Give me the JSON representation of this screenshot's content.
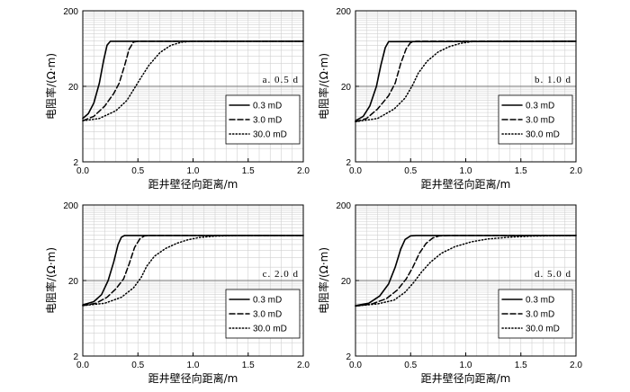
{
  "figure": {
    "xlabel": "距井壁径向距离/m",
    "ylabel": "电阻率/(Ω·m)",
    "xticks": [
      "0.0",
      "0.5",
      "1.0",
      "1.5",
      "2.0"
    ],
    "yticks": [
      "2",
      "20",
      "200"
    ]
  },
  "chart_data": [
    {
      "type": "line",
      "annotation": "a.  0.5 d",
      "xlim": [
        0,
        2
      ],
      "ylim": [
        2,
        200
      ],
      "yscale": "log",
      "grid": true,
      "legend_position": "bottom-right",
      "series": [
        {
          "name": "0.3 mD",
          "style": "solid",
          "points": [
            [
              0,
              7.5
            ],
            [
              0.05,
              8.7
            ],
            [
              0.1,
              12
            ],
            [
              0.15,
              22
            ],
            [
              0.19,
              45
            ],
            [
              0.22,
              70
            ],
            [
              0.25,
              79
            ],
            [
              2.0,
              79
            ]
          ]
        },
        {
          "name": "3.0 mD",
          "style": "dashed",
          "points": [
            [
              0,
              7.0
            ],
            [
              0.1,
              8.0
            ],
            [
              0.2,
              11
            ],
            [
              0.28,
              16
            ],
            [
              0.33,
              22
            ],
            [
              0.38,
              38
            ],
            [
              0.42,
              62
            ],
            [
              0.46,
              77
            ],
            [
              0.5,
              79
            ],
            [
              2.0,
              79
            ]
          ]
        },
        {
          "name": "30.0 mD",
          "style": "dotted",
          "points": [
            [
              0,
              7.0
            ],
            [
              0.15,
              7.5
            ],
            [
              0.3,
              9.5
            ],
            [
              0.4,
              13
            ],
            [
              0.47,
              19
            ],
            [
              0.52,
              25
            ],
            [
              0.6,
              38
            ],
            [
              0.7,
              56
            ],
            [
              0.8,
              70
            ],
            [
              0.9,
              77
            ],
            [
              1.0,
              79
            ],
            [
              2.0,
              79
            ]
          ]
        }
      ]
    },
    {
      "type": "line",
      "annotation": "b. 1.0 d",
      "xlim": [
        0,
        2
      ],
      "ylim": [
        2,
        200
      ],
      "yscale": "log",
      "grid": true,
      "legend_position": "bottom-right",
      "series": [
        {
          "name": "0.3 mD",
          "style": "solid",
          "points": [
            [
              0,
              7.0
            ],
            [
              0.07,
              8
            ],
            [
              0.13,
              11
            ],
            [
              0.19,
              20
            ],
            [
              0.23,
              38
            ],
            [
              0.27,
              65
            ],
            [
              0.3,
              78
            ],
            [
              2.0,
              79
            ]
          ]
        },
        {
          "name": "3.0 mD",
          "style": "dashed",
          "points": [
            [
              0,
              6.8
            ],
            [
              0.1,
              7.5
            ],
            [
              0.2,
              10
            ],
            [
              0.3,
              15
            ],
            [
              0.36,
              22
            ],
            [
              0.41,
              40
            ],
            [
              0.46,
              63
            ],
            [
              0.5,
              76
            ],
            [
              0.55,
              79
            ],
            [
              2.0,
              79
            ]
          ]
        },
        {
          "name": "30.0 mD",
          "style": "dotted",
          "points": [
            [
              0,
              6.8
            ],
            [
              0.2,
              7.5
            ],
            [
              0.35,
              10
            ],
            [
              0.45,
              14
            ],
            [
              0.52,
              21
            ],
            [
              0.57,
              30
            ],
            [
              0.65,
              43
            ],
            [
              0.75,
              57
            ],
            [
              0.85,
              67
            ],
            [
              0.95,
              74
            ],
            [
              1.05,
              78
            ],
            [
              1.2,
              79
            ],
            [
              2.0,
              79
            ]
          ]
        }
      ]
    },
    {
      "type": "line",
      "annotation": "c. 2.0 d",
      "xlim": [
        0,
        2
      ],
      "ylim": [
        2,
        200
      ],
      "yscale": "log",
      "grid": true,
      "legend_position": "bottom-right",
      "series": [
        {
          "name": "0.3 mD",
          "style": "solid",
          "points": [
            [
              0,
              9.5
            ],
            [
              0.1,
              10.5
            ],
            [
              0.17,
              13
            ],
            [
              0.23,
              20
            ],
            [
              0.28,
              35
            ],
            [
              0.32,
              60
            ],
            [
              0.35,
              75
            ],
            [
              0.38,
              79
            ],
            [
              2.0,
              79
            ]
          ]
        },
        {
          "name": "3.0 mD",
          "style": "dashed",
          "points": [
            [
              0,
              9.3
            ],
            [
              0.12,
              10
            ],
            [
              0.22,
              12
            ],
            [
              0.3,
              15.5
            ],
            [
              0.37,
              21
            ],
            [
              0.42,
              33
            ],
            [
              0.47,
              55
            ],
            [
              0.52,
              72
            ],
            [
              0.56,
              78
            ],
            [
              0.6,
              79
            ],
            [
              2.0,
              79
            ]
          ]
        },
        {
          "name": "30.0 mD",
          "style": "dotted",
          "points": [
            [
              0,
              9.3
            ],
            [
              0.2,
              10
            ],
            [
              0.35,
              12
            ],
            [
              0.46,
              16
            ],
            [
              0.53,
              22
            ],
            [
              0.58,
              31
            ],
            [
              0.65,
              42
            ],
            [
              0.75,
              53
            ],
            [
              0.85,
              62
            ],
            [
              0.95,
              69
            ],
            [
              1.05,
              74
            ],
            [
              1.2,
              77.5
            ],
            [
              1.4,
              79
            ],
            [
              2.0,
              79
            ]
          ]
        }
      ]
    },
    {
      "type": "line",
      "annotation": "d. 5.0 d",
      "xlim": [
        0,
        2
      ],
      "ylim": [
        2,
        200
      ],
      "yscale": "log",
      "grid": true,
      "legend_position": "bottom-right",
      "series": [
        {
          "name": "0.3 mD",
          "style": "solid",
          "points": [
            [
              0,
              9.3
            ],
            [
              0.12,
              10
            ],
            [
              0.22,
              12.5
            ],
            [
              0.3,
              18
            ],
            [
              0.36,
              30
            ],
            [
              0.41,
              52
            ],
            [
              0.45,
              70
            ],
            [
              0.5,
              78
            ],
            [
              0.55,
              79
            ],
            [
              2.0,
              79
            ]
          ]
        },
        {
          "name": "3.0 mD",
          "style": "dashed",
          "points": [
            [
              0,
              9.2
            ],
            [
              0.15,
              9.8
            ],
            [
              0.28,
              11.5
            ],
            [
              0.38,
              15
            ],
            [
              0.46,
              21
            ],
            [
              0.52,
              30
            ],
            [
              0.58,
              46
            ],
            [
              0.64,
              62
            ],
            [
              0.7,
              73
            ],
            [
              0.76,
              78
            ],
            [
              0.85,
              79
            ],
            [
              2.0,
              79
            ]
          ]
        },
        {
          "name": "30.0 mD",
          "style": "dotted",
          "points": [
            [
              0,
              9.2
            ],
            [
              0.2,
              9.8
            ],
            [
              0.35,
              11
            ],
            [
              0.45,
              14
            ],
            [
              0.53,
              19
            ],
            [
              0.6,
              26
            ],
            [
              0.68,
              35
            ],
            [
              0.78,
              46
            ],
            [
              0.9,
              56
            ],
            [
              1.05,
              65
            ],
            [
              1.2,
              71
            ],
            [
              1.4,
              75
            ],
            [
              1.6,
              77.5
            ],
            [
              1.8,
              78.5
            ],
            [
              2.0,
              79
            ]
          ]
        }
      ]
    }
  ]
}
